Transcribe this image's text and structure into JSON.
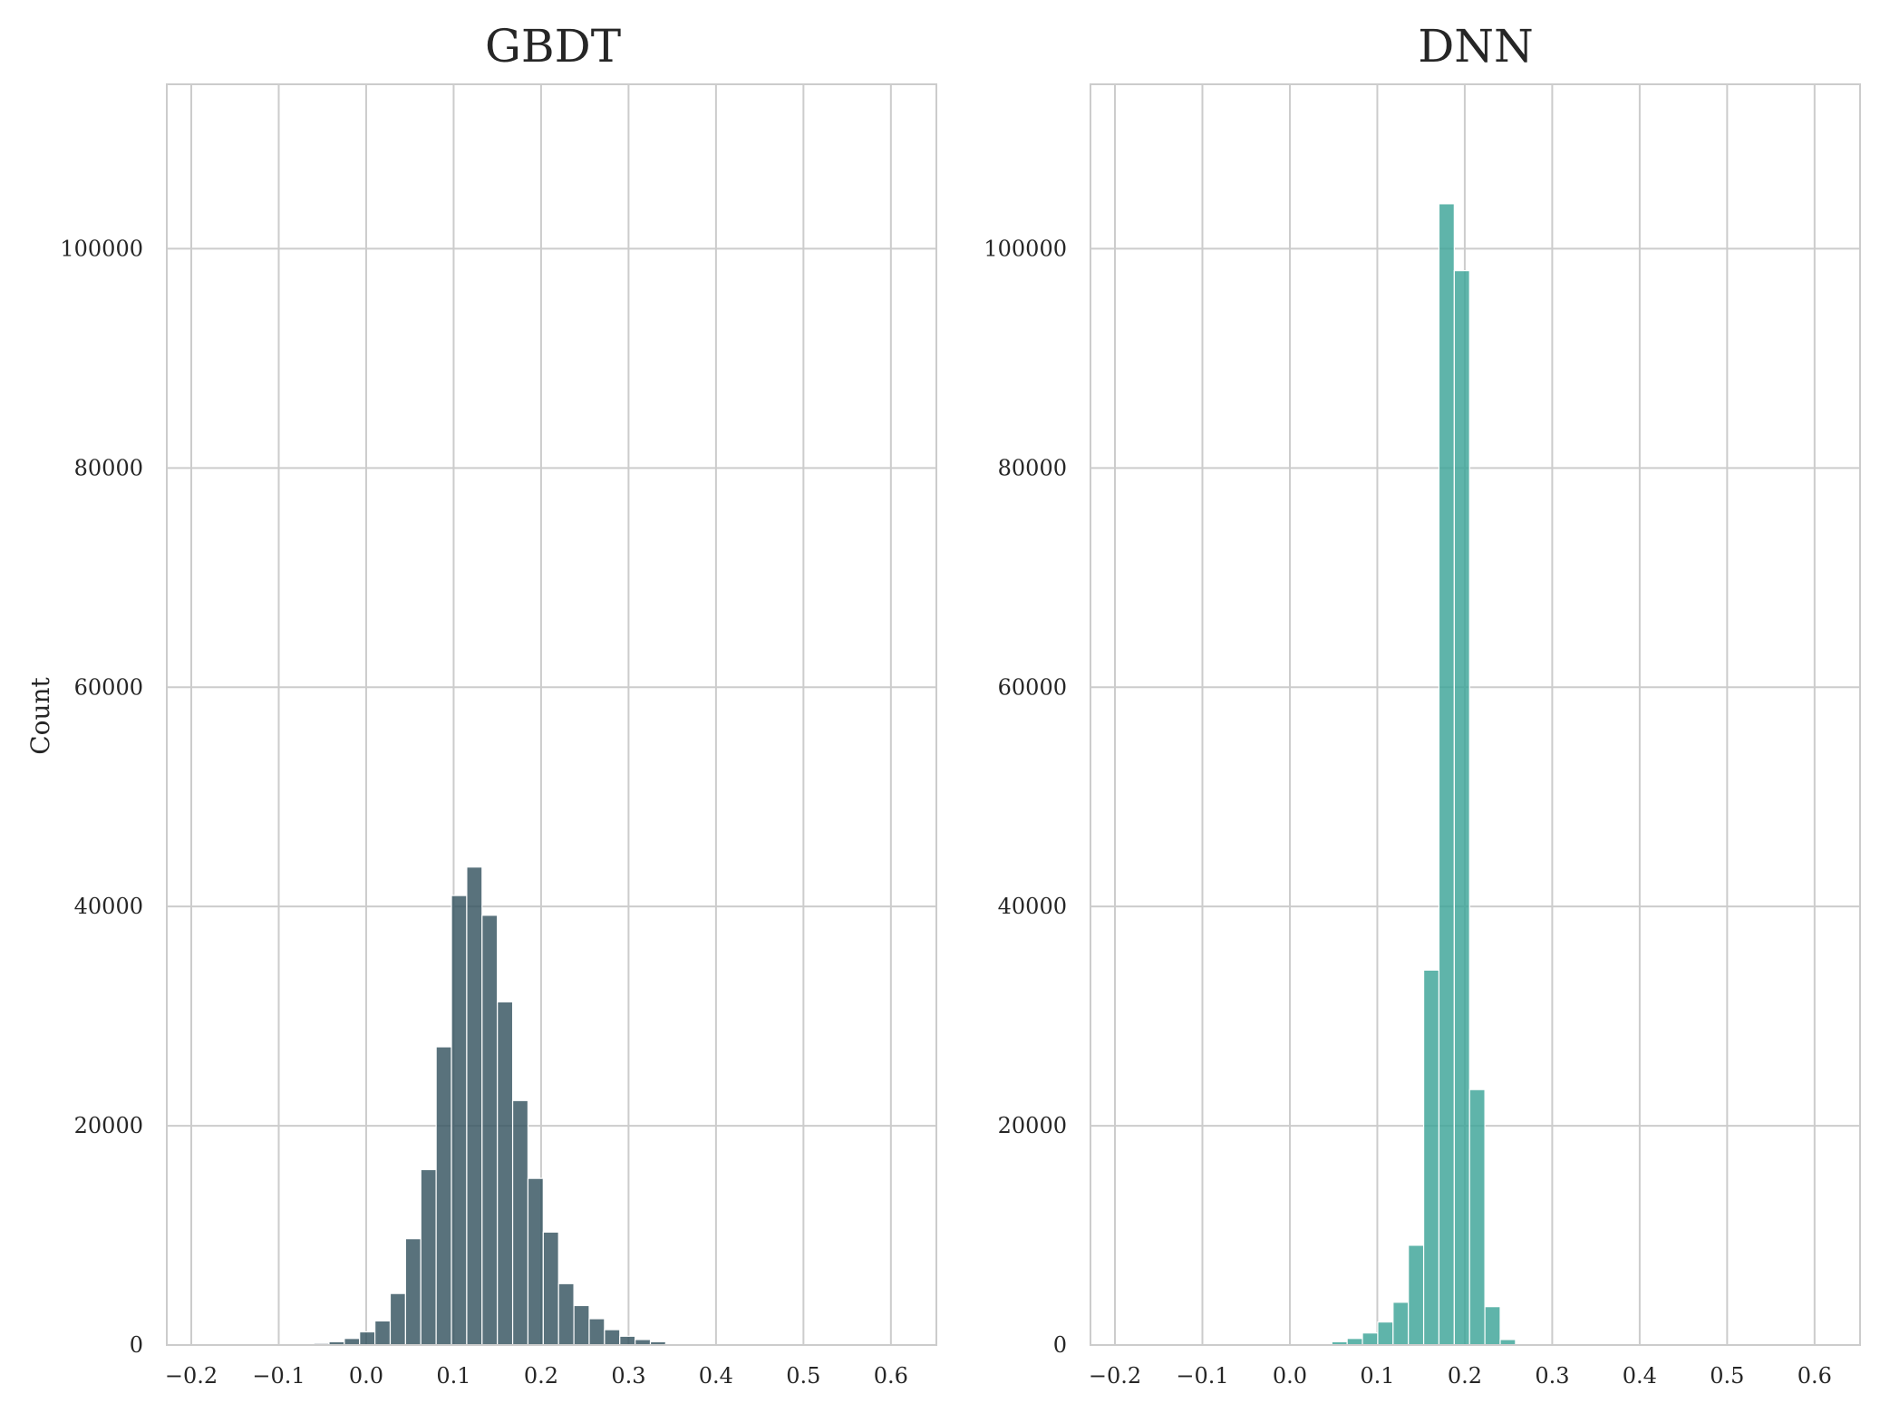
{
  "chart_data": [
    {
      "type": "bar",
      "title": "GBDT",
      "xlabel": "",
      "ylabel": "Count",
      "color": "#35535f",
      "opacity": 0.82,
      "grid": true,
      "xlim": [
        -0.228,
        0.652
      ],
      "ylim": [
        0,
        115000
      ],
      "xticks": [
        -0.2,
        -0.1,
        0.0,
        0.1,
        0.2,
        0.3,
        0.4,
        0.5,
        0.6
      ],
      "xtick_labels": [
        "−0.2",
        "−0.1",
        "0.0",
        "0.1",
        "0.2",
        "0.3",
        "0.4",
        "0.5",
        "0.6"
      ],
      "yticks": [
        0,
        20000,
        40000,
        60000,
        80000,
        100000
      ],
      "ytick_labels": [
        "0",
        "20000",
        "40000",
        "60000",
        "80000",
        "100000"
      ],
      "bin_edges": [
        -0.2,
        -0.1825,
        -0.165,
        -0.1475,
        -0.13,
        -0.1125,
        -0.095,
        -0.0775,
        -0.06,
        -0.0425,
        -0.025,
        -0.0075,
        0.01,
        0.0275,
        0.045,
        0.0625,
        0.08,
        0.0975,
        0.115,
        0.1325,
        0.15,
        0.1675,
        0.185,
        0.2025,
        0.22,
        0.2375,
        0.255,
        0.2725,
        0.29,
        0.3075,
        0.325,
        0.3425,
        0.36,
        0.3775,
        0.395,
        0.4125,
        0.43,
        0.4475,
        0.465,
        0.4825,
        0.5,
        0.5175,
        0.535,
        0.5525,
        0.57,
        0.5875,
        0.605,
        0.6225
      ],
      "values": [
        0,
        0,
        0,
        0,
        0,
        0,
        20,
        60,
        150,
        300,
        600,
        1200,
        2200,
        4700,
        9700,
        16000,
        27200,
        41000,
        43600,
        39200,
        31300,
        22300,
        15200,
        10300,
        5600,
        3600,
        2400,
        1400,
        800,
        500,
        300,
        100,
        40,
        10,
        0,
        0,
        0,
        0,
        0,
        0,
        0,
        0,
        0,
        0,
        0,
        0,
        0
      ]
    },
    {
      "type": "bar",
      "title": "DNN",
      "xlabel": "",
      "ylabel": "",
      "color": "#3ca497",
      "opacity": 0.82,
      "grid": true,
      "xlim": [
        -0.228,
        0.652
      ],
      "ylim": [
        0,
        115000
      ],
      "xticks": [
        -0.2,
        -0.1,
        0.0,
        0.1,
        0.2,
        0.3,
        0.4,
        0.5,
        0.6
      ],
      "xtick_labels": [
        "−0.2",
        "−0.1",
        "0.0",
        "0.1",
        "0.2",
        "0.3",
        "0.4",
        "0.5",
        "0.6"
      ],
      "yticks": [
        0,
        20000,
        40000,
        60000,
        80000,
        100000
      ],
      "ytick_labels": [
        "0",
        "20000",
        "40000",
        "60000",
        "80000",
        "100000"
      ],
      "bin_edges": [
        0.048,
        0.0655,
        0.083,
        0.1005,
        0.118,
        0.1355,
        0.153,
        0.1705,
        0.188,
        0.2055,
        0.223,
        0.2405,
        0.258
      ],
      "values": [
        300,
        600,
        1100,
        2100,
        3900,
        9100,
        34200,
        104100,
        98000,
        23300,
        3500,
        500
      ]
    }
  ]
}
